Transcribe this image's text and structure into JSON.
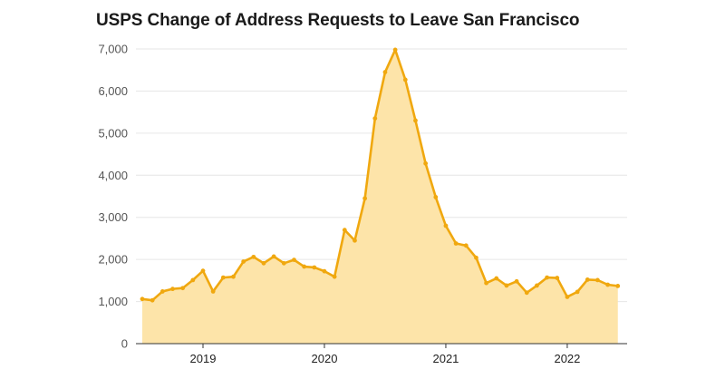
{
  "chart_data": {
    "type": "area",
    "title": "USPS Change of Address Requests to Leave San Francisco",
    "xlabel": "",
    "ylabel": "",
    "ylim": [
      0,
      7000
    ],
    "y_ticks": [
      0,
      1000,
      2000,
      3000,
      4000,
      5000,
      6000,
      7000
    ],
    "y_tick_labels": [
      "0",
      "1,000",
      "2,000",
      "3,000",
      "4,000",
      "5,000",
      "6,000",
      "7,000"
    ],
    "x_ticks": [
      "2019",
      "2020",
      "2021",
      "2022"
    ],
    "x_range": [
      "2018-07",
      "2022-06"
    ],
    "grid": true,
    "legend": "none",
    "colors": {
      "line": "#f0a80f",
      "fill": "#fde4a9",
      "grid": "#e6e6e6",
      "axis": "#333333"
    },
    "x": [
      "2018-07",
      "2018-08",
      "2018-09",
      "2018-10",
      "2018-11",
      "2018-12",
      "2019-01",
      "2019-02",
      "2019-03",
      "2019-04",
      "2019-05",
      "2019-06",
      "2019-07",
      "2019-08",
      "2019-09",
      "2019-10",
      "2019-11",
      "2019-12",
      "2020-01",
      "2020-02",
      "2020-03",
      "2020-04",
      "2020-05",
      "2020-06",
      "2020-07",
      "2020-08",
      "2020-09",
      "2020-10",
      "2020-11",
      "2020-12",
      "2021-01",
      "2021-02",
      "2021-03",
      "2021-04",
      "2021-05",
      "2021-06",
      "2021-07",
      "2021-08",
      "2021-09",
      "2021-10",
      "2021-11",
      "2021-12",
      "2022-01",
      "2022-02",
      "2022-03",
      "2022-04",
      "2022-05",
      "2022-06"
    ],
    "values": [
      1060,
      1030,
      1240,
      1300,
      1320,
      1510,
      1730,
      1240,
      1570,
      1590,
      1950,
      2060,
      1910,
      2070,
      1910,
      1990,
      1830,
      1810,
      1720,
      1590,
      2700,
      2450,
      3450,
      5350,
      6450,
      6980,
      6270,
      5300,
      4280,
      3480,
      2800,
      2380,
      2330,
      2040,
      1440,
      1550,
      1380,
      1480,
      1210,
      1380,
      1570,
      1560,
      1110,
      1230,
      1520,
      1510,
      1400,
      1370
    ]
  }
}
